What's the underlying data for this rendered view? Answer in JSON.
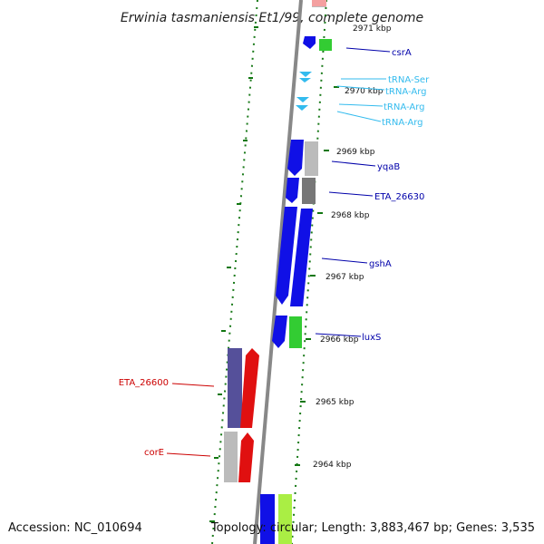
{
  "title": "Erwinia tasmaniensis Et1/99, complete genome",
  "footer": {
    "accession": "Accession: NC_010694",
    "topology": "Topology: circular; Length: 3,883,467 bp; Genes: 3,535"
  },
  "colors": {
    "backbone": "#888888",
    "cds_blue": "#1010e6",
    "cds_red": "#e01010",
    "cds_green": "#33cc33",
    "cds_gray": "#bbbbbb",
    "cds_darkgray": "#777777",
    "cds_purple": "#55509a",
    "cds_lime": "#aaee44",
    "cds_pink": "#f4a0a0",
    "trna": "#33bbee",
    "label_blue": "#0000aa",
    "label_red": "#cc0000",
    "label_trna": "#33bbee",
    "tick_green": "#117711"
  },
  "kbp_labels": [
    "2971 kbp",
    "2970 kbp",
    "2969 kbp",
    "2968 kbp",
    "2967 kbp",
    "2966 kbp",
    "2965 kbp",
    "2964 kbp"
  ],
  "gene_labels": {
    "csrA": "csrA",
    "trna_ser": "tRNA-Ser",
    "trna_arg1": "tRNA-Arg",
    "trna_arg2": "tRNA-Arg",
    "trna_arg3": "tRNA-Arg",
    "yqaB": "yqaB",
    "eta26630": "ETA_26630",
    "gshA": "gshA",
    "luxS": "luxS",
    "eta26600": "ETA_26600",
    "corE": "corE"
  }
}
